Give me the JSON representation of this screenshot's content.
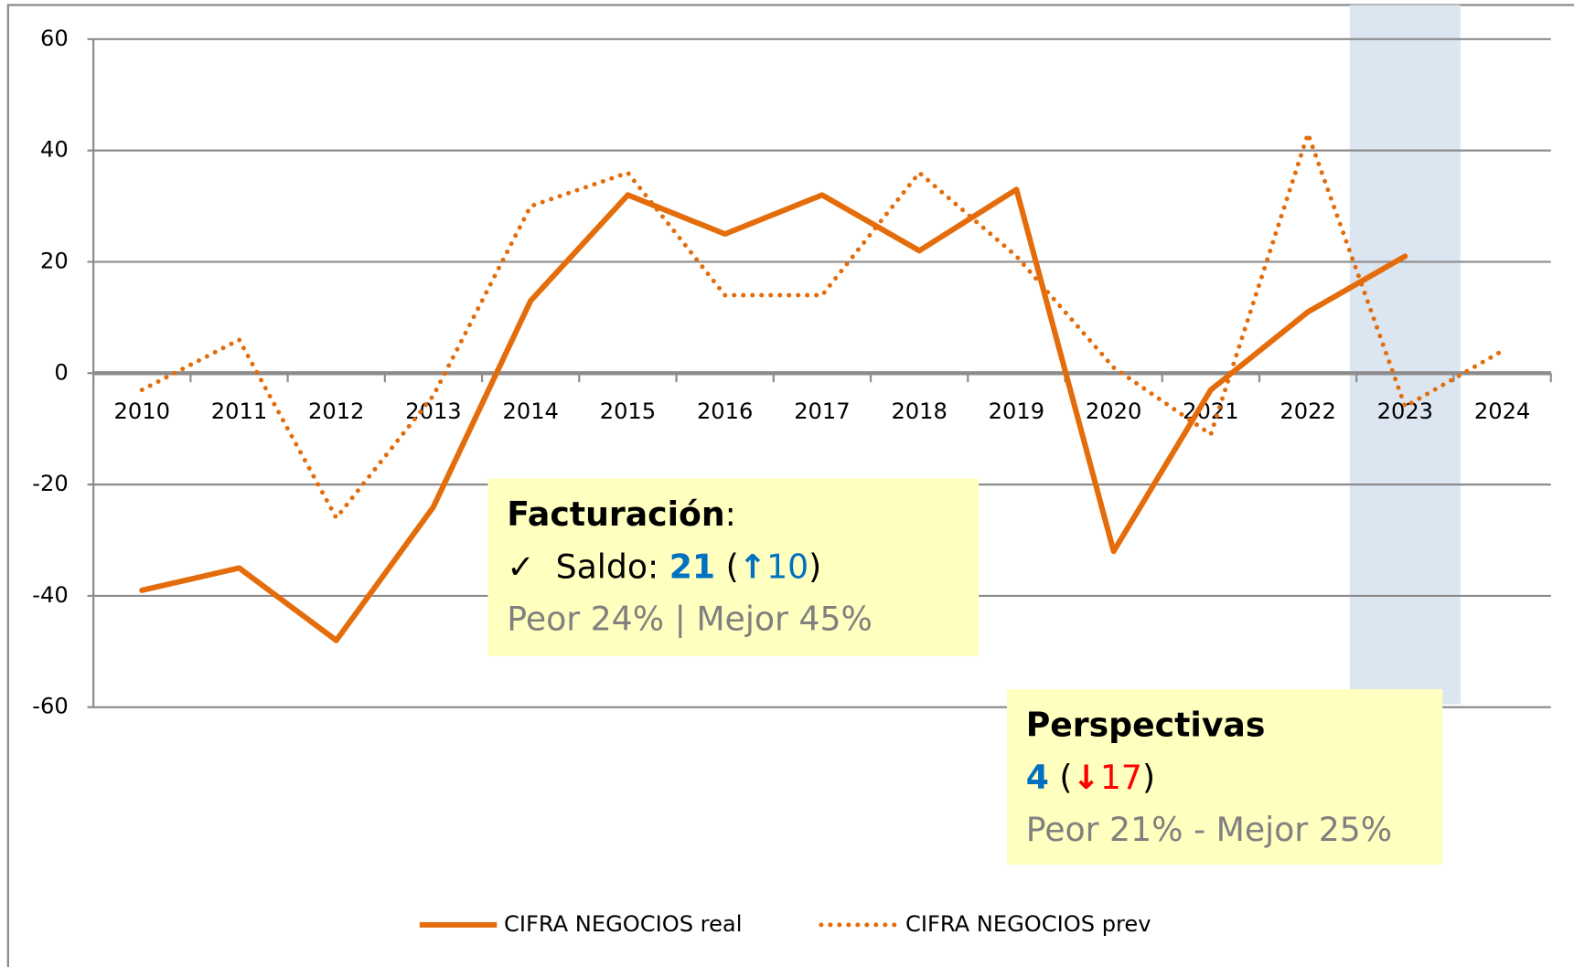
{
  "chart_data": {
    "type": "line",
    "categories": [
      "2010",
      "2011",
      "2012",
      "2013",
      "2014",
      "2015",
      "2016",
      "2017",
      "2018",
      "2019",
      "2020",
      "2021",
      "2022",
      "2023",
      "2024"
    ],
    "series": [
      {
        "name": "CIFRA NEGOCIOS real",
        "color": "#e46c0a",
        "style": "solid",
        "values": [
          -39,
          -35,
          -48,
          -24,
          13,
          32,
          25,
          32,
          22,
          33,
          -32,
          -3,
          11,
          21,
          null
        ]
      },
      {
        "name": "CIFRA NEGOCIOS prev",
        "color": "#e46c0a",
        "style": "dotted",
        "values": [
          -3,
          6,
          -26,
          -4,
          30,
          36,
          14,
          14,
          36,
          21,
          1,
          -11,
          43,
          -6,
          4
        ]
      }
    ],
    "ylim": [
      -60,
      60
    ],
    "yticks": [
      -60,
      -40,
      -20,
      0,
      20,
      40,
      60
    ],
    "grid": true,
    "legend": "bottom",
    "annotations": [
      {
        "lines": [
          [
            {
              "text": "Facturación",
              "bold": true
            },
            {
              "text": ":"
            }
          ],
          [
            {
              "text": "✓  Saldo: "
            },
            {
              "text": "21",
              "bold": true,
              "color": "#0070c0"
            },
            {
              "text": " ("
            },
            {
              "text": "↑",
              "bold": true,
              "color": "#0070c0"
            },
            {
              "text": "10",
              "color": "#0070c0"
            },
            {
              "text": ")"
            }
          ],
          [
            {
              "text": "Peor 24% | Mejor 45%",
              "color": "#808080"
            }
          ]
        ]
      },
      {
        "lines": [
          [
            {
              "text": "Perspectivas",
              "bold": true
            }
          ],
          [
            {
              "text": "4",
              "bold": true,
              "color": "#0070c0"
            },
            {
              "text": " ("
            },
            {
              "text": "↓",
              "bold": true,
              "color": "#ff0000"
            },
            {
              "text": "17",
              "color": "#ff0000"
            },
            {
              "text": ")"
            }
          ],
          [
            {
              "text": "Peor 21% - Mejor 25%",
              "color": "#808080"
            }
          ]
        ]
      }
    ]
  }
}
